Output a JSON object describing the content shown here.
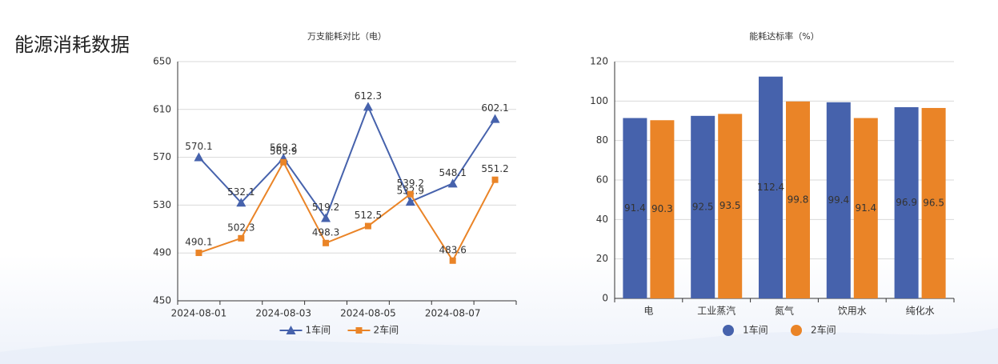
{
  "page_title": "能源消耗数据",
  "chart_data": [
    {
      "type": "line",
      "title": "万支能耗对比（电）",
      "categories": [
        "2024-08-01",
        null,
        "2024-08-03",
        null,
        "2024-08-05",
        null,
        "2024-08-07",
        null
      ],
      "series": [
        {
          "name": "1车间",
          "color": "#4662ac",
          "marker": "triangle",
          "values": [
            570.1,
            532.1,
            569.2,
            519.2,
            612.3,
            532.9,
            548.1,
            602.1
          ]
        },
        {
          "name": "2车间",
          "color": "#ea8427",
          "marker": "square",
          "values": [
            490.1,
            502.3,
            565.9,
            498.3,
            512.5,
            539.2,
            483.6,
            551.2
          ]
        }
      ],
      "ylim": [
        450,
        650
      ],
      "yticks": [
        450,
        490,
        530,
        570,
        610,
        650
      ],
      "grid": true
    },
    {
      "type": "bar",
      "title": "能耗达标率（%）",
      "categories": [
        "电",
        "工业蒸汽",
        "氮气",
        "饮用水",
        "纯化水"
      ],
      "series": [
        {
          "name": "1车间",
          "color": "#4662ac",
          "values": [
            91.4,
            92.5,
            112.4,
            99.4,
            96.9
          ]
        },
        {
          "name": "2车间",
          "color": "#ea8427",
          "values": [
            90.3,
            93.5,
            99.8,
            91.4,
            96.5
          ]
        }
      ],
      "ylim": [
        0,
        120
      ],
      "yticks": [
        0,
        20,
        40,
        60,
        80,
        100,
        120
      ],
      "grid": true
    }
  ]
}
